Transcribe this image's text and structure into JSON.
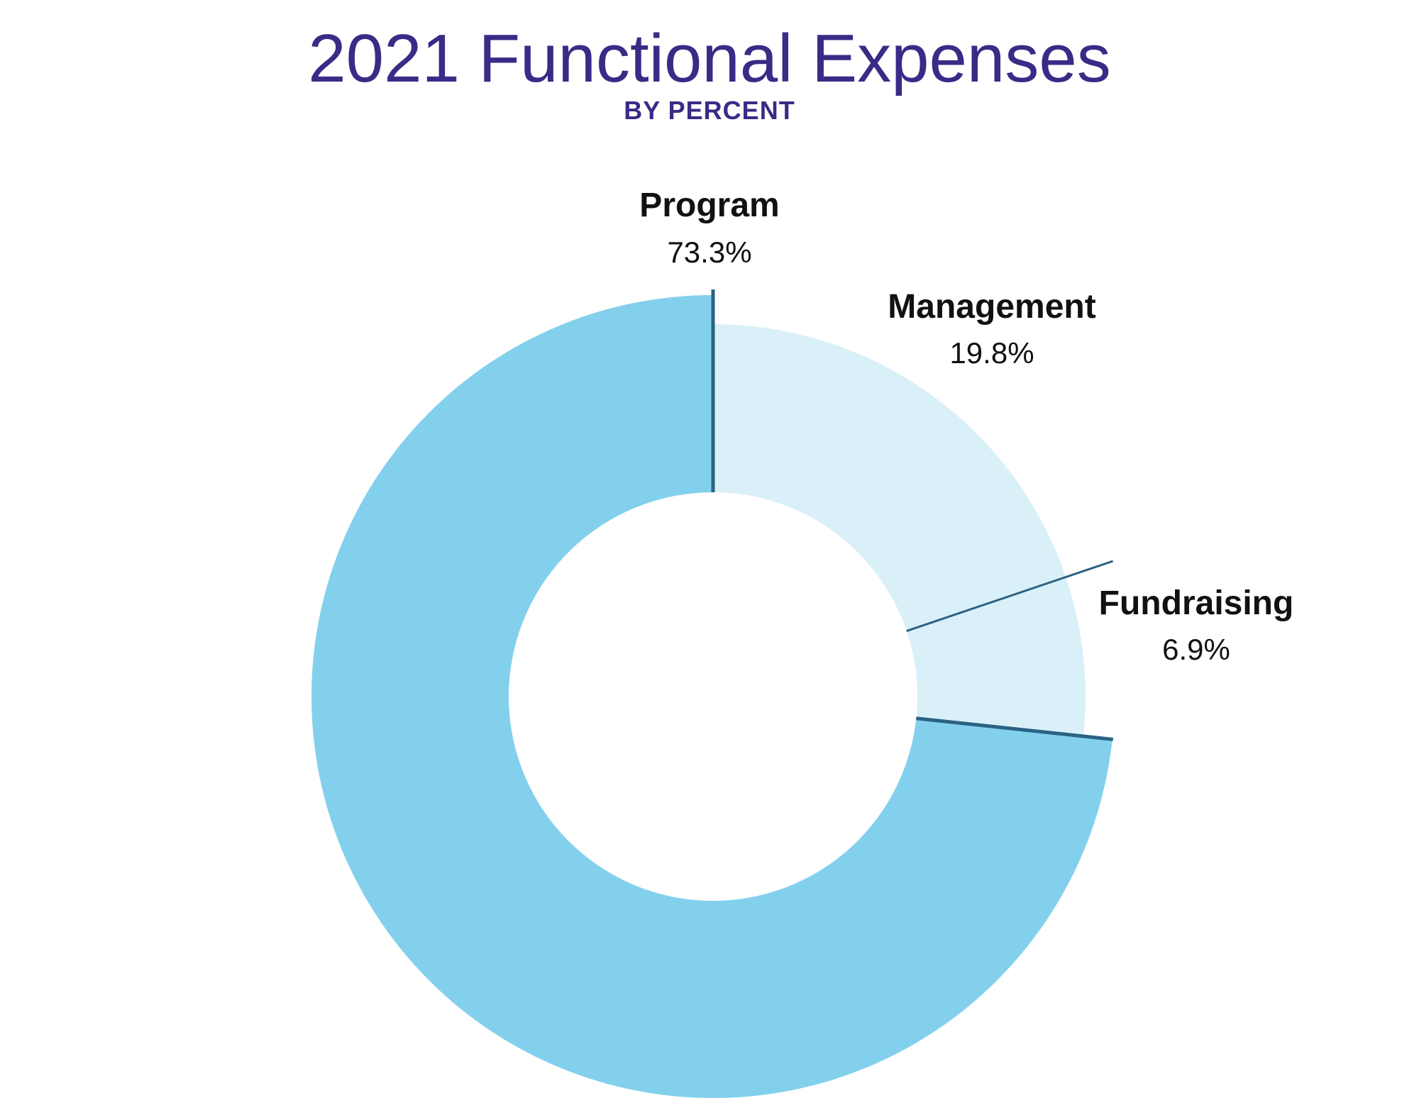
{
  "chart_data": {
    "type": "pie",
    "donut": true,
    "title": "2021 Functional Expenses",
    "subtitle": "BY PERCENT",
    "slices": [
      {
        "label": "Program",
        "value": 73.3,
        "value_label": "73.3%",
        "color": "#83d0ed"
      },
      {
        "label": "Management",
        "value": 19.8,
        "value_label": "19.8%",
        "color": "#daf0f8"
      },
      {
        "label": "Fundraising",
        "value": 6.9,
        "value_label": "6.9%",
        "color": "#daf0f8"
      }
    ],
    "separator_color": "#2b6283"
  },
  "colors": {
    "title": "#3b2a86",
    "subtitle": "#3b2a86",
    "label_text": "#111111"
  }
}
